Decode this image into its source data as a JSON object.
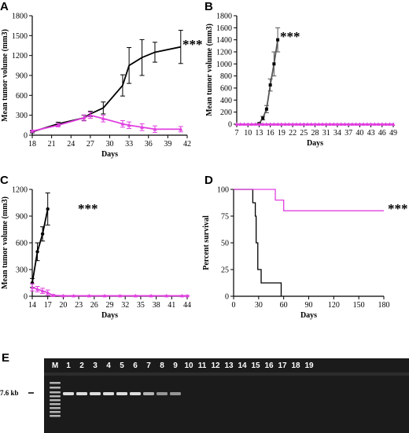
{
  "chart_data": [
    {
      "panel": "A",
      "type": "line",
      "ylabel": "Mean tumor volume (mm3)",
      "xlabel": "Days",
      "xlim": [
        18,
        42
      ],
      "ylim": [
        0,
        1800
      ],
      "xticks": [
        "18",
        "21",
        "24",
        "27",
        "30",
        "33",
        "36",
        "39",
        "42"
      ],
      "yticks": [
        "0",
        "300",
        "600",
        "900",
        "1200",
        "1500",
        "1800"
      ],
      "annotation": "***",
      "series": [
        {
          "color": "#000000",
          "marker": "none",
          "x": [
            18,
            22,
            26,
            27,
            29,
            32,
            33,
            35,
            37,
            41
          ],
          "values": [
            50,
            170,
            260,
            320,
            410,
            750,
            1050,
            1170,
            1250,
            1330
          ],
          "err": [
            15,
            25,
            40,
            40,
            90,
            160,
            270,
            270,
            150,
            250
          ]
        },
        {
          "color": "#e040e0",
          "marker": "triangle",
          "x": [
            18,
            22,
            26,
            27,
            29,
            32,
            33,
            35,
            37,
            41
          ],
          "values": [
            60,
            150,
            260,
            300,
            250,
            170,
            150,
            120,
            90,
            90
          ],
          "err": [
            15,
            25,
            45,
            45,
            50,
            50,
            50,
            50,
            50,
            40
          ]
        }
      ]
    },
    {
      "panel": "B",
      "type": "line",
      "ylabel": "Mean tumor volume (mm3)",
      "xlabel": "Days",
      "xlim": [
        7,
        49
      ],
      "ylim": [
        0,
        1800
      ],
      "xticks": [
        "7",
        "10",
        "13",
        "16",
        "19",
        "22",
        "25",
        "28",
        "31",
        "34",
        "37",
        "40",
        "43",
        "46",
        "49"
      ],
      "yticks": [
        "0",
        "200",
        "400",
        "600",
        "800",
        "1000",
        "1200",
        "1400",
        "1600",
        "1800"
      ],
      "annotation": "***",
      "series": [
        {
          "color": "#555555",
          "marker": "square",
          "x": [
            13,
            14,
            15,
            16,
            17,
            18
          ],
          "values": [
            10,
            100,
            250,
            650,
            1000,
            1400
          ],
          "err": [
            5,
            30,
            60,
            100,
            200,
            200
          ]
        },
        {
          "color": "#e040e0",
          "marker": "triangle",
          "x": [
            7,
            8,
            9,
            10,
            11,
            12,
            13,
            14,
            15,
            16,
            17,
            18,
            19,
            20,
            21,
            22,
            23,
            24,
            25,
            26,
            27,
            28,
            29,
            30,
            31,
            32,
            33,
            34,
            35,
            36,
            37,
            38,
            39,
            40,
            41,
            42,
            43,
            44,
            45,
            46,
            47,
            48,
            49
          ],
          "values": [
            0,
            0,
            0,
            0,
            0,
            0,
            0,
            0,
            0,
            0,
            0,
            0,
            0,
            0,
            0,
            0,
            0,
            0,
            0,
            0,
            0,
            0,
            0,
            0,
            0,
            0,
            0,
            0,
            0,
            0,
            0,
            0,
            0,
            0,
            0,
            0,
            0,
            0,
            0,
            0,
            0,
            0,
            0
          ]
        }
      ]
    },
    {
      "panel": "C",
      "type": "line",
      "ylabel": "Mean tumor volume (mm3)",
      "xlabel": "Days",
      "xlim": [
        14,
        44
      ],
      "ylim": [
        0,
        1200
      ],
      "xticks": [
        "14",
        "17",
        "20",
        "23",
        "26",
        "29",
        "32",
        "35",
        "38",
        "41",
        "44"
      ],
      "yticks": [
        "0",
        "300",
        "600",
        "900",
        "1200"
      ],
      "annotation": "***",
      "series": [
        {
          "color": "#000000",
          "marker": "circle",
          "x": [
            14,
            15,
            16,
            17
          ],
          "values": [
            150,
            500,
            700,
            980
          ],
          "err": [
            50,
            100,
            80,
            180
          ]
        },
        {
          "color": "#e040e0",
          "marker": "triangle",
          "x": [
            14,
            15,
            16,
            17,
            18,
            20,
            22,
            25,
            28,
            31,
            34,
            37,
            40,
            43,
            44
          ],
          "values": [
            100,
            80,
            60,
            40,
            10,
            5,
            5,
            5,
            5,
            5,
            5,
            5,
            5,
            5,
            5
          ],
          "err": [
            40,
            30,
            30,
            30,
            10,
            5,
            5,
            5,
            5,
            5,
            5,
            5,
            5,
            5,
            5
          ]
        }
      ]
    },
    {
      "panel": "D",
      "type": "line",
      "ylabel": "Percent survival",
      "xlabel": "Days",
      "xlim": [
        0,
        180
      ],
      "ylim": [
        0,
        100
      ],
      "xticks": [
        "0",
        "30",
        "60",
        "90",
        "120",
        "150",
        "180"
      ],
      "yticks": [
        "0",
        "25",
        "50",
        "75",
        "100"
      ],
      "annotation": "***",
      "series": [
        {
          "color": "#000000",
          "step": true,
          "x": [
            0,
            23,
            26,
            27,
            29,
            33,
            36,
            45,
            57
          ],
          "values": [
            100,
            87.5,
            75,
            50,
            25,
            12.5,
            12.5,
            12.5,
            0
          ]
        },
        {
          "color": "#e040e0",
          "step": true,
          "x": [
            0,
            50,
            60,
            180
          ],
          "values": [
            100,
            90,
            80,
            80
          ]
        }
      ]
    }
  ],
  "panel_labels": [
    "A",
    "B",
    "C",
    "D",
    "E"
  ],
  "gel": {
    "size_label": "7.6 kb",
    "lane_labels": [
      "M",
      "1",
      "2",
      "3",
      "4",
      "5",
      "6",
      "7",
      "8",
      "9",
      "10",
      "11",
      "12",
      "13",
      "14",
      "15",
      "16",
      "17",
      "18",
      "19"
    ]
  }
}
